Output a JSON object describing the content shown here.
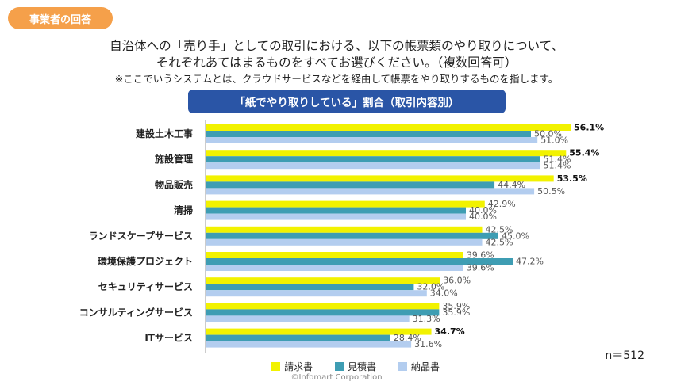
{
  "header": {
    "badge": "事業者の回答",
    "question_line1": "自治体への「売り手」としての取引における、以下の帳票類のやり取りについて、",
    "question_line2": "それぞれあてはまるものをすべてお選びください。（複数回答可）",
    "note": "※ここでいうシステムとは、クラウドサービスなどを経由して帳票をやり取りするものを指します。"
  },
  "chart_data": {
    "type": "bar",
    "orientation": "horizontal",
    "title": "「紙でやり取りしている」割合（取引内容別）",
    "categories": [
      "建設土木工事",
      "施設管理",
      "物品販売",
      "清掃",
      "ランドスケープサービス",
      "環境保護プロジェクト",
      "セキュリティサービス",
      "コンサルティングサービス",
      "ITサービス"
    ],
    "series": [
      {
        "name": "請求書",
        "color": "#f2f200",
        "values": [
          56.1,
          55.4,
          53.5,
          42.9,
          42.5,
          39.6,
          36.0,
          35.9,
          34.7
        ],
        "value_labels": [
          "56.1%",
          "55.4%",
          "53.5%",
          "42.9%",
          "42.5%",
          "39.6%",
          "36.0%",
          "35.9%",
          "34.7%"
        ]
      },
      {
        "name": "見積書",
        "color": "#3e9db3",
        "values": [
          50.0,
          51.4,
          44.4,
          40.0,
          45.0,
          47.2,
          32.0,
          35.9,
          28.4
        ],
        "value_labels": [
          "50.0%",
          "51.4%",
          "44.4%",
          "40.0%",
          "45.0%",
          "47.2%",
          "32.0%",
          "35.9%",
          "28.4%"
        ]
      },
      {
        "name": "納品書",
        "color": "#b3cdef",
        "values": [
          51.0,
          51.4,
          50.5,
          40.0,
          42.5,
          39.6,
          34.0,
          31.3,
          31.6
        ],
        "value_labels": [
          "51.0%",
          "51.4%",
          "50.5%",
          "40.0%",
          "42.5%",
          "39.6%",
          "34.0%",
          "31.3%",
          "31.6%"
        ]
      }
    ],
    "bold_labels": [
      [
        0,
        0
      ],
      [
        1,
        0
      ],
      [
        2,
        0
      ],
      [
        8,
        0
      ]
    ],
    "xlim": [
      0,
      60
    ],
    "grid": false,
    "legend": "bottom",
    "n_label": "n＝512"
  },
  "footer": {
    "copyright": "©Infomart Corporation"
  }
}
